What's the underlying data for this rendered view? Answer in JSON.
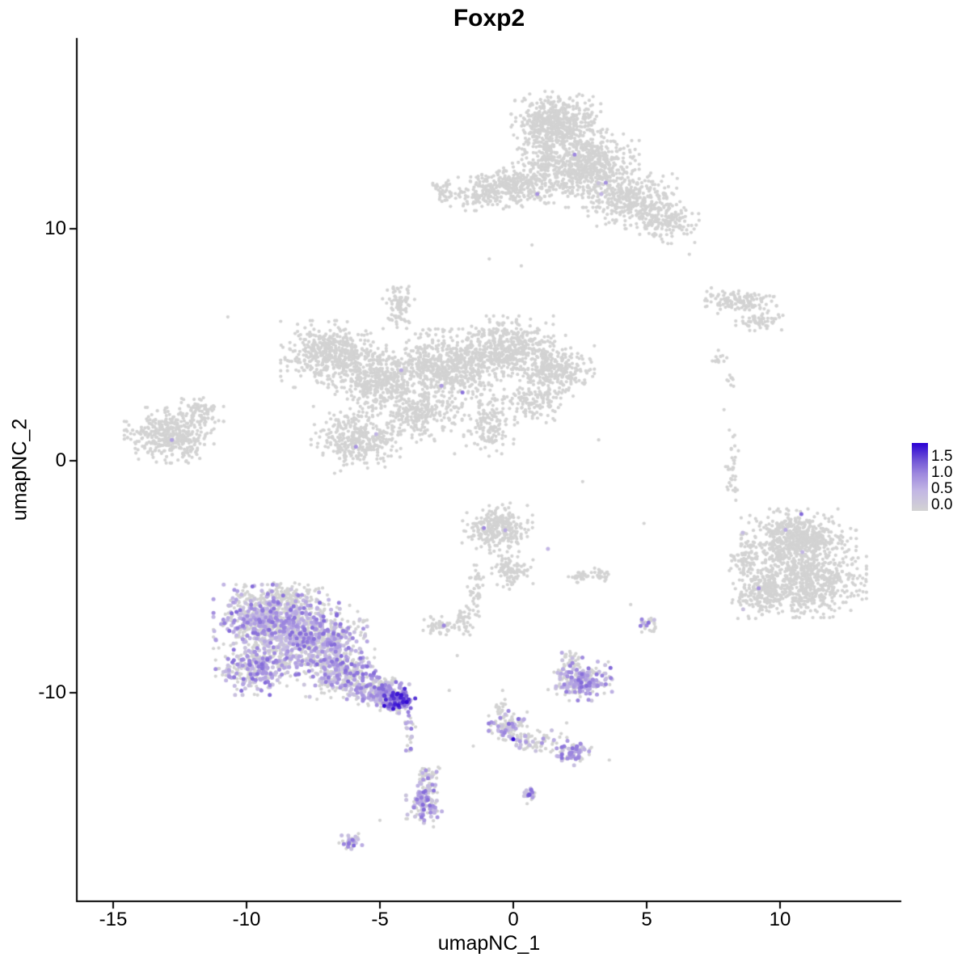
{
  "chart_data": {
    "type": "scatter",
    "title": "Foxp2",
    "xlabel": "umapNC_1",
    "ylabel": "umapNC_2",
    "xlim": [
      -16.4,
      14.5
    ],
    "ylim": [
      -19.0,
      18.2
    ],
    "xticks": [
      -15,
      -10,
      -5,
      0,
      5,
      10
    ],
    "yticks": [
      -10,
      0,
      10
    ],
    "grid": false,
    "background": "#ffffff",
    "axis_color": "#000000",
    "zero_color": "#d3d3d3",
    "legend": {
      "position": "right",
      "ticks": [
        "1.5",
        "1.0",
        "0.5",
        "0.0"
      ],
      "vmin": 0.0,
      "vmax": 1.65,
      "stops": [
        [
          0,
          "#d3d3d3"
        ],
        [
          0.3,
          "#c2b6e4"
        ],
        [
          0.55,
          "#9d87de"
        ],
        [
          0.75,
          "#6f53d6"
        ],
        [
          1,
          "#2a00d4"
        ]
      ]
    },
    "clusters": [
      [
        "top-cluster",
        1.6,
        14.6,
        0.7,
        0.55,
        550,
        0
      ],
      [
        "top-cluster",
        2.8,
        12.6,
        0.8,
        0.7,
        600,
        0.003
      ],
      [
        "top-cluster",
        4.6,
        11.2,
        0.75,
        0.5,
        350,
        0
      ],
      [
        "top-cluster",
        5.8,
        10.2,
        0.5,
        0.35,
        120,
        0
      ],
      [
        "top-cluster",
        0.2,
        11.9,
        0.75,
        0.4,
        280,
        0
      ],
      [
        "top-cluster",
        -1.2,
        11.5,
        0.5,
        0.3,
        120,
        0
      ],
      [
        "top-cluster",
        -2.6,
        11.6,
        0.25,
        0.2,
        40,
        0
      ],
      [
        "top-cluster",
        1.2,
        13.0,
        0.5,
        0.6,
        150,
        0
      ],
      [
        "central-cluster",
        -6.8,
        4.6,
        0.8,
        0.6,
        500,
        0
      ],
      [
        "central-cluster",
        -5.0,
        3.4,
        0.7,
        0.6,
        400,
        0
      ],
      [
        "central-cluster",
        -2.6,
        4.0,
        0.9,
        0.7,
        600,
        0.002
      ],
      [
        "central-cluster",
        -0.2,
        4.8,
        0.9,
        0.6,
        500,
        0
      ],
      [
        "central-cluster",
        1.6,
        3.9,
        0.6,
        0.5,
        250,
        0
      ],
      [
        "central-cluster",
        -4.3,
        6.7,
        0.25,
        0.5,
        90,
        0
      ],
      [
        "central-cluster",
        -5.9,
        0.9,
        0.7,
        0.6,
        350,
        0.002
      ],
      [
        "central-cluster",
        -3.6,
        2.0,
        0.7,
        0.5,
        250,
        0
      ],
      [
        "central-cluster",
        -0.9,
        1.6,
        0.4,
        0.6,
        150,
        0
      ],
      [
        "central-cluster",
        0.8,
        2.6,
        0.5,
        0.4,
        120,
        0
      ],
      [
        "left-cluster",
        -12.9,
        1.1,
        0.7,
        0.5,
        400,
        0.002
      ],
      [
        "left-cluster",
        -11.7,
        2.1,
        0.35,
        0.3,
        80,
        0
      ],
      [
        "right-small-cluster",
        8.4,
        6.9,
        0.7,
        0.25,
        130,
        0
      ],
      [
        "right-small-cluster",
        9.3,
        6.0,
        0.4,
        0.2,
        60,
        0
      ],
      [
        "right-small-cluster",
        7.7,
        4.4,
        0.15,
        0.15,
        12,
        0
      ],
      [
        "right-small-cluster",
        8.1,
        3.5,
        0.12,
        0.12,
        8,
        0
      ],
      [
        "right-cluster",
        10.7,
        -3.4,
        0.9,
        0.55,
        600,
        0.002
      ],
      [
        "right-cluster",
        11.2,
        -5.2,
        0.85,
        0.65,
        600,
        0
      ],
      [
        "right-cluster",
        9.4,
        -5.6,
        0.5,
        0.5,
        250,
        0.004
      ],
      [
        "right-cluster",
        8.7,
        -4.3,
        0.25,
        0.35,
        70,
        0
      ],
      [
        "right-cluster",
        8.2,
        -0.3,
        0.1,
        0.8,
        35,
        0
      ],
      [
        "center-small-cluster",
        -0.6,
        -2.9,
        0.55,
        0.45,
        280,
        0.004
      ],
      [
        "center-small-cluster",
        -0.1,
        -4.7,
        0.35,
        0.35,
        100,
        0
      ],
      [
        "center-small-cluster",
        -1.4,
        -5.6,
        0.15,
        0.5,
        45,
        0
      ],
      [
        "center-small-cluster",
        -1.9,
        -6.9,
        0.2,
        0.3,
        40,
        0
      ],
      [
        "center-small-cluster",
        -2.8,
        -7.2,
        0.25,
        0.2,
        45,
        0.02
      ],
      [
        "mid-pair",
        2.5,
        -5.0,
        0.18,
        0.15,
        25,
        0
      ],
      [
        "mid-pair",
        3.3,
        -4.9,
        0.18,
        0.15,
        25,
        0
      ],
      [
        "lower-left-cluster",
        -9.2,
        -6.9,
        0.85,
        0.65,
        650,
        0.45
      ],
      [
        "lower-left-cluster",
        -7.4,
        -7.7,
        0.8,
        0.7,
        650,
        0.5
      ],
      [
        "lower-left-cluster",
        -9.6,
        -8.9,
        0.65,
        0.5,
        350,
        0.45
      ],
      [
        "lower-left-cluster",
        -6.4,
        -9.2,
        0.6,
        0.45,
        300,
        0.4
      ],
      [
        "lower-left-cluster",
        -5.1,
        -9.9,
        0.5,
        0.3,
        220,
        0.5
      ],
      [
        "lower-left-cluster",
        -4.35,
        -10.35,
        0.28,
        0.22,
        160,
        0.75,
        0.5,
        1.6
      ],
      [
        "lower-left-cluster",
        -8.6,
        -5.9,
        0.7,
        0.3,
        180,
        0.1
      ],
      [
        "lower-left-cluster",
        -3.9,
        -11.6,
        0.1,
        0.5,
        25,
        0.3
      ],
      [
        "bottom-center-cluster",
        -0.2,
        -11.5,
        0.3,
        0.3,
        110,
        0.3
      ],
      [
        "bottom-center-cluster",
        0.9,
        -12.1,
        0.5,
        0.2,
        70,
        0.25
      ],
      [
        "bottom-center-cluster",
        2.3,
        -12.6,
        0.28,
        0.22,
        80,
        0.55
      ],
      [
        "bottom-center-cluster",
        -0.5,
        -10.6,
        0.12,
        0.2,
        15,
        0
      ],
      [
        "small-purple-cluster",
        2.5,
        -9.5,
        0.5,
        0.35,
        230,
        0.65
      ],
      [
        "small-purple-cluster",
        2.2,
        -8.6,
        0.2,
        0.2,
        35,
        0.2
      ],
      [
        "bottom-small-cluster",
        -3.35,
        -14.7,
        0.28,
        0.45,
        150,
        0.5
      ],
      [
        "bottom-small-cluster",
        -3.2,
        -13.6,
        0.2,
        0.25,
        40,
        0.1
      ],
      [
        "tiny-cluster-a",
        -6.1,
        -16.4,
        0.18,
        0.14,
        40,
        0.65
      ],
      [
        "tiny-cluster-b",
        0.6,
        -14.35,
        0.12,
        0.18,
        28,
        0.75
      ],
      [
        "tiny-cluster-c",
        5.05,
        -7.05,
        0.18,
        0.15,
        28,
        0.15
      ]
    ],
    "highlight_points": [
      [
        2.3,
        13.2,
        0.9
      ],
      [
        0.9,
        11.5,
        0.8
      ],
      [
        3.3,
        11.5,
        0.5
      ],
      [
        -12.8,
        0.9,
        0.7
      ],
      [
        -4.2,
        3.9,
        0.6
      ],
      [
        -5.9,
        0.6,
        0.8
      ],
      [
        -1.1,
        -2.9,
        0.9
      ],
      [
        -0.3,
        -3.0,
        0.6
      ],
      [
        1.3,
        -3.8,
        0.5
      ],
      [
        10.8,
        -2.3,
        1.1
      ],
      [
        9.2,
        -5.5,
        0.8
      ],
      [
        8.6,
        -3.1,
        0.4
      ],
      [
        5.0,
        -7.1,
        0.9
      ],
      [
        -2.6,
        -7.1,
        0.9
      ],
      [
        0.0,
        -12.0,
        1.6
      ],
      [
        0.6,
        -14.4,
        1.2
      ]
    ],
    "sparse_points": [
      [
        -10.7,
        6.2
      ],
      [
        0.3,
        8.4
      ],
      [
        0.7,
        9.3
      ],
      [
        -0.9,
        8.7
      ],
      [
        6.6,
        8.9
      ],
      [
        7.9,
        2.2
      ],
      [
        8.3,
        1.1
      ],
      [
        4.9,
        -2.7
      ],
      [
        4.4,
        -6.2
      ],
      [
        2.6,
        -0.9
      ],
      [
        3.2,
        0.9
      ],
      [
        -2.2,
        0.3
      ],
      [
        -2.1,
        -8.4
      ],
      [
        -2.4,
        -9.9
      ],
      [
        -5.0,
        -15.5
      ],
      [
        -0.4,
        -9.9
      ],
      [
        -0.3,
        -10.5
      ],
      [
        2.0,
        -11.3
      ],
      [
        -1.5,
        -12.3
      ],
      [
        3.6,
        -12.9
      ]
    ]
  }
}
